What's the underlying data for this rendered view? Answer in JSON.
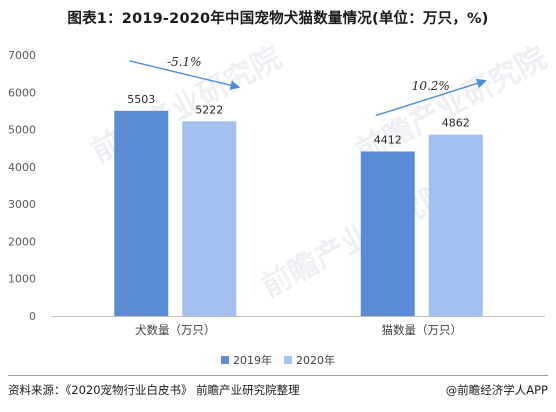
{
  "title": "图表1：2019-2020年中国宠物犬猫数量情况(单位：万只，%)",
  "watermark": "前瞻产业研究院",
  "footer": {
    "source": "资料来源：《2020宠物行业白皮书》 前瞻产业研究院整理",
    "brand": "@前瞻经济学人APP"
  },
  "colors": {
    "series_2019": "#5b8bd5",
    "series_2020": "#a3bff0",
    "arrow": "#4a90d9",
    "grid": "#e8e8e8"
  },
  "chart_data": {
    "type": "bar",
    "categories": [
      "犬数量（万只）",
      "猫数量（万只）"
    ],
    "series": [
      {
        "name": "2019年",
        "values": [
          5503,
          4412
        ]
      },
      {
        "name": "2020年",
        "values": [
          5222,
          4862
        ]
      }
    ],
    "ylim": [
      0,
      7000
    ],
    "yticks": [
      0,
      1000,
      2000,
      3000,
      4000,
      5000,
      6000,
      7000
    ],
    "grid": false,
    "legend_position": "bottom",
    "annotations": [
      "-5.1%",
      "10.2%"
    ]
  }
}
